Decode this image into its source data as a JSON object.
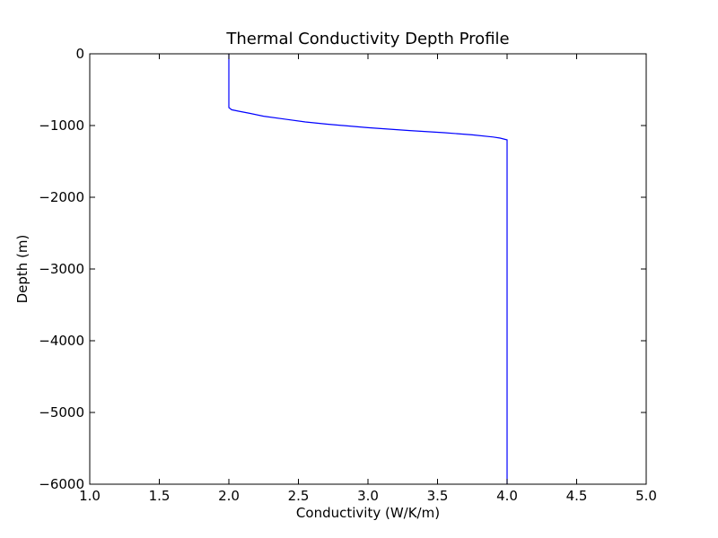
{
  "chart_data": {
    "type": "line",
    "title": "Thermal Conductivity Depth Profile",
    "xlabel": "Conductivity (W/K/m)",
    "ylabel": "Depth (m)",
    "xlim": [
      1.0,
      5.0
    ],
    "ylim": [
      -6000,
      0
    ],
    "xticks": [
      1.0,
      1.5,
      2.0,
      2.5,
      3.0,
      3.5,
      4.0,
      4.5,
      5.0
    ],
    "xtick_labels": [
      "1.0",
      "1.5",
      "2.0",
      "2.5",
      "3.0",
      "3.5",
      "4.0",
      "4.5",
      "5.0"
    ],
    "yticks": [
      0,
      -1000,
      -2000,
      -3000,
      -4000,
      -5000,
      -6000
    ],
    "ytick_labels": [
      "0",
      "−1000",
      "−2000",
      "−3000",
      "−4000",
      "−5000",
      "−6000"
    ],
    "grid": false,
    "legend": "none",
    "series": [
      {
        "color": "#0000ff",
        "x": [
          2.0,
          2.0,
          2.02,
          2.07,
          2.15,
          2.25,
          2.4,
          2.55,
          2.7,
          3.0,
          3.3,
          3.55,
          3.75,
          3.9,
          3.95,
          4.0,
          4.0
        ],
        "y": [
          0,
          -750,
          -780,
          -800,
          -830,
          -870,
          -910,
          -950,
          -980,
          -1030,
          -1070,
          -1100,
          -1130,
          -1160,
          -1175,
          -1200,
          -6000
        ]
      }
    ]
  }
}
